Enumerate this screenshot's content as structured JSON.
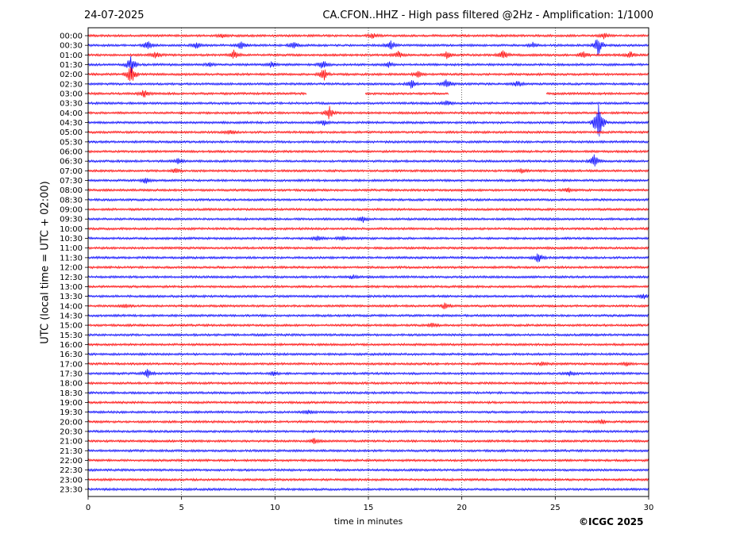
{
  "header": {
    "date": "24-07-2025",
    "title": "CA.CFON..HHZ - High pass filtered @2Hz - Amplification: 1/1000"
  },
  "credit": "©ICGC 2025",
  "colors": {
    "red": "#ff0000",
    "blue": "#0000ff",
    "grid": "#000000"
  },
  "chart_data": {
    "type": "line",
    "xlabel": "time in minutes",
    "ylabel": "UTC (local time = UTC + 02:00)",
    "xlim": [
      0,
      30
    ],
    "x_ticks": [
      0,
      5,
      10,
      15,
      20,
      25,
      30
    ],
    "grid": "vertical dotted",
    "row_labels": [
      "00:00",
      "00:30",
      "01:00",
      "01:30",
      "02:00",
      "02:30",
      "03:00",
      "03:30",
      "04:00",
      "04:30",
      "05:00",
      "05:30",
      "06:00",
      "06:30",
      "07:00",
      "07:30",
      "08:00",
      "08:30",
      "09:00",
      "09:30",
      "10:00",
      "10:30",
      "11:00",
      "11:30",
      "12:00",
      "12:30",
      "13:00",
      "13:30",
      "14:00",
      "14:30",
      "15:00",
      "15:30",
      "16:00",
      "16:30",
      "17:00",
      "17:30",
      "18:00",
      "18:30",
      "19:00",
      "19:30",
      "20:00",
      "20:30",
      "21:00",
      "21:30",
      "22:00",
      "22:30",
      "23:00",
      "23:30"
    ],
    "events": [
      {
        "row": "00:00",
        "minute": 15.2,
        "amp": 0.4
      },
      {
        "row": "00:00",
        "minute": 7.2,
        "amp": 0.3
      },
      {
        "row": "00:00",
        "minute": 27.6,
        "amp": 0.5
      },
      {
        "row": "00:30",
        "minute": 3.2,
        "amp": 0.6
      },
      {
        "row": "00:30",
        "minute": 5.8,
        "amp": 0.5
      },
      {
        "row": "00:30",
        "minute": 8.2,
        "amp": 0.6
      },
      {
        "row": "00:30",
        "minute": 11.0,
        "amp": 0.6
      },
      {
        "row": "00:30",
        "minute": 16.2,
        "amp": 0.8
      },
      {
        "row": "00:30",
        "minute": 23.8,
        "amp": 0.4
      },
      {
        "row": "00:30",
        "minute": 27.3,
        "amp": 1.5
      },
      {
        "row": "01:00",
        "minute": 3.6,
        "amp": 0.5
      },
      {
        "row": "01:00",
        "minute": 7.8,
        "amp": 0.6
      },
      {
        "row": "01:00",
        "minute": 16.6,
        "amp": 0.5
      },
      {
        "row": "01:00",
        "minute": 19.2,
        "amp": 0.5
      },
      {
        "row": "01:00",
        "minute": 22.2,
        "amp": 0.8
      },
      {
        "row": "01:00",
        "minute": 26.5,
        "amp": 0.5
      },
      {
        "row": "01:00",
        "minute": 29.0,
        "amp": 0.5
      },
      {
        "row": "01:30",
        "minute": 2.3,
        "amp": 1.2
      },
      {
        "row": "01:30",
        "minute": 6.5,
        "amp": 0.4
      },
      {
        "row": "01:30",
        "minute": 9.8,
        "amp": 0.5
      },
      {
        "row": "01:30",
        "minute": 12.6,
        "amp": 0.8
      },
      {
        "row": "01:30",
        "minute": 16.1,
        "amp": 0.4
      },
      {
        "row": "02:00",
        "minute": 2.3,
        "amp": 1.5
      },
      {
        "row": "02:00",
        "minute": 12.6,
        "amp": 1.0
      },
      {
        "row": "02:00",
        "minute": 17.7,
        "amp": 0.5
      },
      {
        "row": "02:30",
        "minute": 17.3,
        "amp": 0.6
      },
      {
        "row": "02:30",
        "minute": 19.2,
        "amp": 0.7
      },
      {
        "row": "02:30",
        "minute": 23.0,
        "amp": 0.5
      },
      {
        "row": "03:00",
        "minute": 3.0,
        "amp": 0.6
      },
      {
        "row": "03:30",
        "minute": 19.2,
        "amp": 0.4
      },
      {
        "row": "04:00",
        "minute": 12.9,
        "amp": 1.0
      },
      {
        "row": "04:30",
        "minute": 12.6,
        "amp": 0.4
      },
      {
        "row": "04:30",
        "minute": 27.3,
        "amp": 3.0
      },
      {
        "row": "05:00",
        "minute": 7.6,
        "amp": 0.3
      },
      {
        "row": "06:30",
        "minute": 4.8,
        "amp": 0.4
      },
      {
        "row": "06:30",
        "minute": 27.1,
        "amp": 1.0
      },
      {
        "row": "07:00",
        "minute": 4.7,
        "amp": 0.3
      },
      {
        "row": "07:00",
        "minute": 23.2,
        "amp": 0.3
      },
      {
        "row": "07:30",
        "minute": 3.1,
        "amp": 0.4
      },
      {
        "row": "08:00",
        "minute": 25.7,
        "amp": 0.3
      },
      {
        "row": "09:30",
        "minute": 14.7,
        "amp": 0.5
      },
      {
        "row": "10:30",
        "minute": 12.3,
        "amp": 0.4
      },
      {
        "row": "10:30",
        "minute": 13.6,
        "amp": 0.3
      },
      {
        "row": "11:30",
        "minute": 24.1,
        "amp": 0.8
      },
      {
        "row": "12:30",
        "minute": 14.2,
        "amp": 0.3
      },
      {
        "row": "13:30",
        "minute": 29.7,
        "amp": 0.4
      },
      {
        "row": "14:00",
        "minute": 19.1,
        "amp": 0.5
      },
      {
        "row": "14:00",
        "minute": 2.0,
        "amp": 0.3
      },
      {
        "row": "15:00",
        "minute": 18.4,
        "amp": 0.3
      },
      {
        "row": "17:00",
        "minute": 24.3,
        "amp": 0.3
      },
      {
        "row": "17:00",
        "minute": 28.8,
        "amp": 0.3
      },
      {
        "row": "17:30",
        "minute": 3.2,
        "amp": 0.6
      },
      {
        "row": "17:30",
        "minute": 9.9,
        "amp": 0.4
      },
      {
        "row": "17:30",
        "minute": 25.8,
        "amp": 0.4
      },
      {
        "row": "19:30",
        "minute": 11.8,
        "amp": 0.3
      },
      {
        "row": "20:00",
        "minute": 27.5,
        "amp": 0.3
      },
      {
        "row": "21:00",
        "minute": 12.1,
        "amp": 0.4
      }
    ],
    "gaps": [
      {
        "row": "03:00",
        "from": 11.7,
        "to": 14.8
      },
      {
        "row": "03:00",
        "from": 19.3,
        "to": 24.5
      }
    ]
  }
}
